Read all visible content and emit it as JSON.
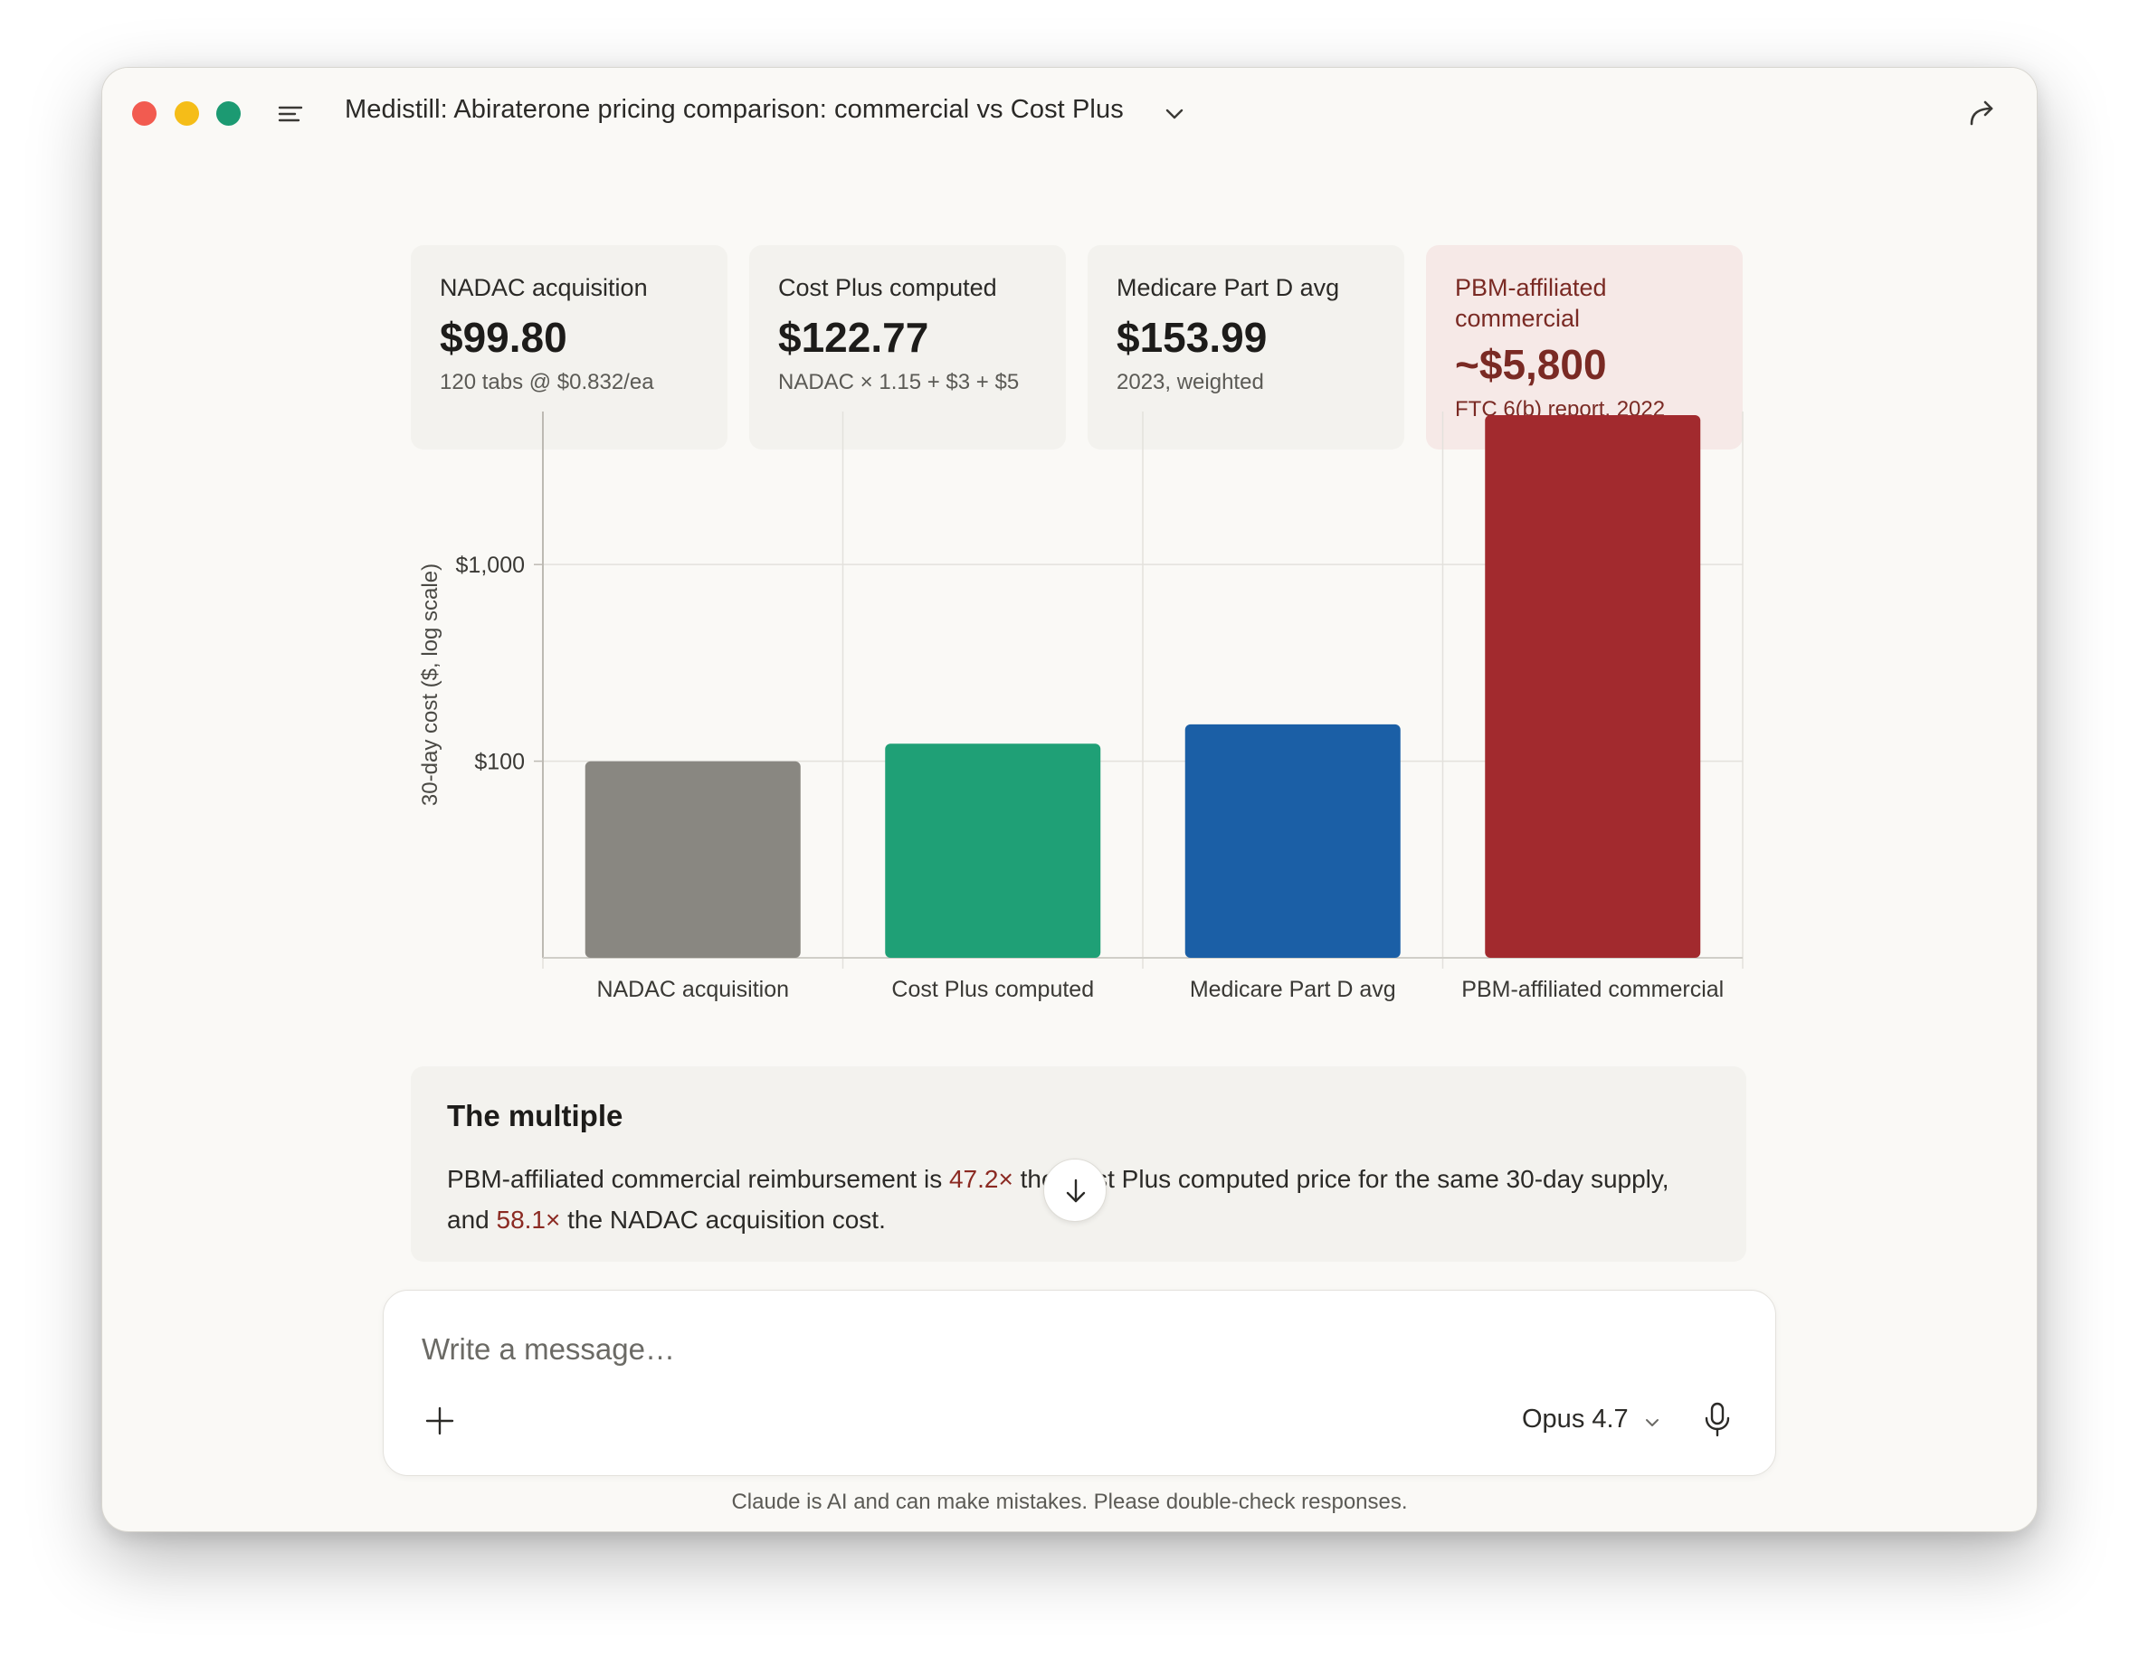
{
  "window": {
    "title": "Medistill: Abiraterone pricing comparison: commercial vs Cost Plus"
  },
  "stat_cards": [
    {
      "label": "NADAC acquisition",
      "value": "$99.80",
      "sub": "120 tabs @ $0.832/ea"
    },
    {
      "label": "Cost Plus computed",
      "value": "$122.77",
      "sub": "NADAC × 1.15 + $3 + $5"
    },
    {
      "label": "Medicare Part D avg",
      "value": "$153.99",
      "sub": "2023, weighted"
    },
    {
      "label": "PBM-affiliated commercial",
      "value": "~$5,800",
      "sub": "FTC 6(b) report, 2022"
    }
  ],
  "chart_data": {
    "type": "bar",
    "categories": [
      "NADAC acquisition",
      "Cost Plus computed",
      "Medicare Part D avg",
      "PBM-affiliated commercial"
    ],
    "values": [
      99.8,
      122.77,
      153.99,
      5800
    ],
    "colors": [
      "#898781",
      "#1fa076",
      "#1b5fa6",
      "#a22a2e"
    ],
    "ylabel": "30-day cost ($, log scale)",
    "yscale": "log",
    "ylim": [
      10,
      6000
    ],
    "yticks": [
      {
        "value": 100,
        "label": "$100"
      },
      {
        "value": 1000,
        "label": "$1,000"
      }
    ],
    "grid": true
  },
  "callout": {
    "title": "The multiple",
    "body_before": "PBM-affiliated commercial reimbursement is ",
    "multiple_cost_plus": "47.2×",
    "body_middle": " the Cost Plus computed price for the same 30-day supply, and ",
    "multiple_nadac": "58.1×",
    "body_after": " the NADAC acquisition cost."
  },
  "composer": {
    "placeholder": "Write a message…",
    "model": "Opus 4.7"
  },
  "disclaimer": "Claude is AI and can make mistakes. Please double-check responses."
}
